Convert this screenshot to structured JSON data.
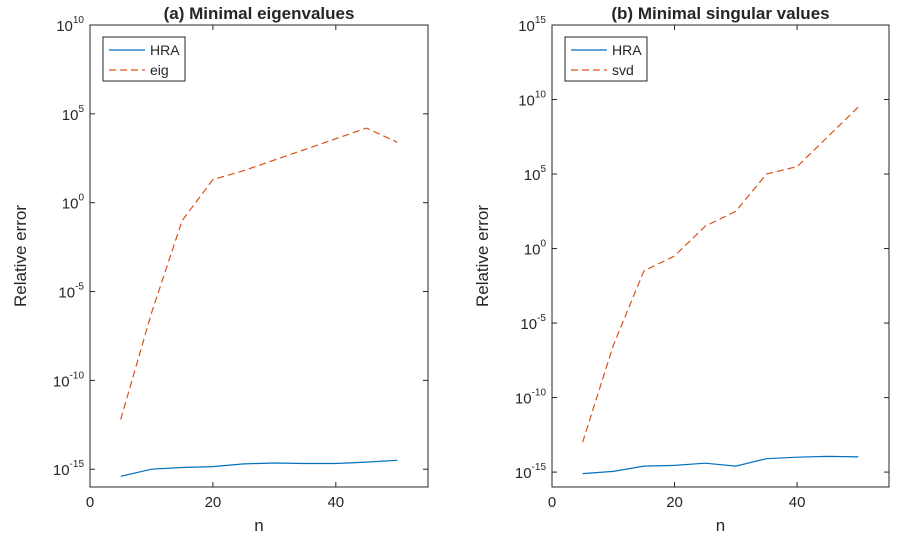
{
  "chart_data": [
    {
      "type": "line",
      "title": "(a) Minimal eigenvalues",
      "xlabel": "n",
      "ylabel": "Relative error",
      "xlim": [
        0,
        55
      ],
      "x_ticks": [
        0,
        20,
        40
      ],
      "yscale": "log",
      "ylim_exp": [
        -16,
        10
      ],
      "y_tick_exps": [
        -15,
        -10,
        -5,
        0,
        5,
        10
      ],
      "grid": false,
      "legend_position": "top-left",
      "series": [
        {
          "name": "HRA",
          "color": "#0072BD",
          "dash": "solid",
          "x": [
            5,
            10,
            15,
            20,
            25,
            30,
            35,
            40,
            45,
            50
          ],
          "y_exp": [
            -15.4,
            -15.0,
            -14.9,
            -14.85,
            -14.7,
            -14.65,
            -14.68,
            -14.68,
            -14.6,
            -14.5
          ]
        },
        {
          "name": "eig",
          "color": "#D95319",
          "dash": "dashed",
          "x": [
            5,
            10,
            15,
            20,
            25,
            30,
            35,
            40,
            45,
            50
          ],
          "y_exp": [
            -12.2,
            -6.2,
            -1.0,
            1.3,
            1.8,
            2.4,
            3.0,
            3.6,
            4.2,
            3.4
          ]
        }
      ]
    },
    {
      "type": "line",
      "title": "(b) Minimal singular values",
      "xlabel": "n",
      "ylabel": "Relative error",
      "xlim": [
        0,
        55
      ],
      "x_ticks": [
        0,
        20,
        40
      ],
      "yscale": "log",
      "ylim_exp": [
        -16,
        15
      ],
      "y_tick_exps": [
        -15,
        -10,
        -5,
        0,
        5,
        10,
        15
      ],
      "grid": false,
      "legend_position": "top-left",
      "series": [
        {
          "name": "HRA",
          "color": "#0072BD",
          "dash": "solid",
          "x": [
            5,
            10,
            15,
            20,
            25,
            30,
            35,
            40,
            45,
            50
          ],
          "y_exp": [
            -15.1,
            -14.95,
            -14.6,
            -14.55,
            -14.4,
            -14.6,
            -14.1,
            -14.0,
            -13.95,
            -13.98
          ]
        },
        {
          "name": "svd",
          "color": "#D95319",
          "dash": "dashed",
          "x": [
            5,
            10,
            15,
            20,
            25,
            30,
            35,
            40,
            45,
            50
          ],
          "y_exp": [
            -13.0,
            -6.5,
            -1.5,
            -0.5,
            1.5,
            2.5,
            5.0,
            5.5,
            7.5,
            9.5
          ]
        }
      ]
    }
  ]
}
